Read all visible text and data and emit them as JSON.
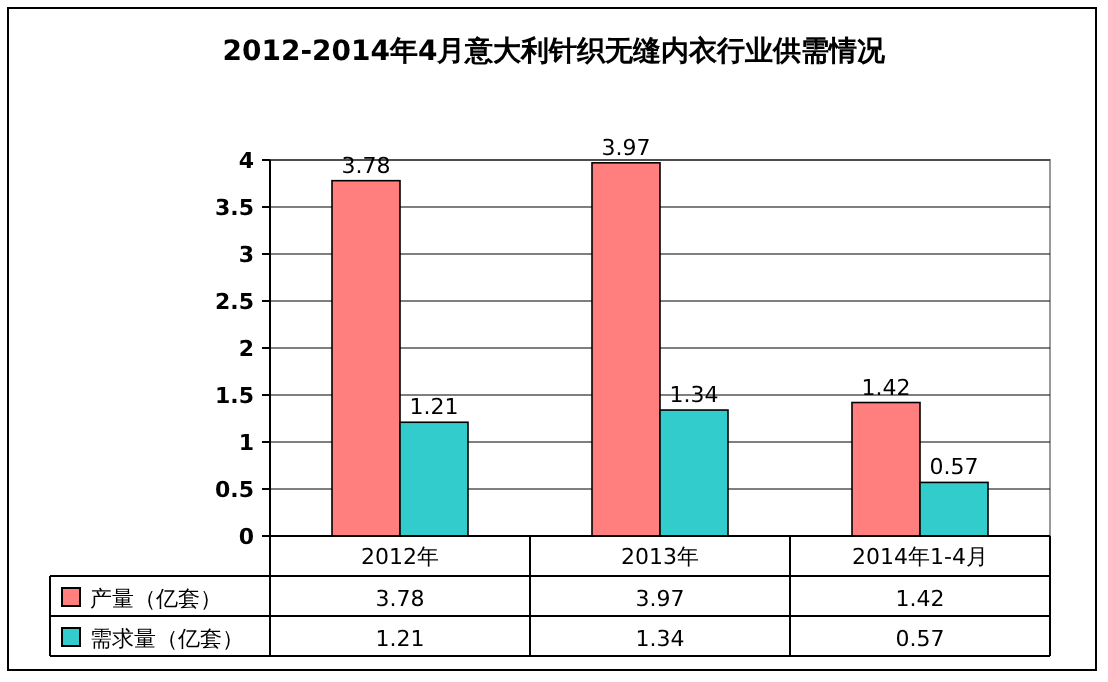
{
  "chart_data": {
    "type": "bar",
    "title": "2012-2014年4月意大利针织无缝内衣行业供需情况",
    "categories": [
      "2012年",
      "2013年",
      "2014年1-4月"
    ],
    "series": [
      {
        "name": "产量（亿套）",
        "color": "#ff7f7f",
        "values": [
          3.78,
          3.97,
          1.42
        ],
        "value_labels": [
          "3.78",
          "3.97",
          "1.42"
        ]
      },
      {
        "name": "需求量（亿套）",
        "color": "#33cccc",
        "values": [
          1.21,
          1.34,
          0.57
        ],
        "value_labels": [
          "1.21",
          "1.34",
          "0.57"
        ]
      }
    ],
    "ylim": [
      0,
      4
    ],
    "yticks": [
      0,
      0.5,
      1,
      1.5,
      2,
      2.5,
      3,
      3.5,
      4
    ],
    "annotations": [
      "3.78",
      "3.97",
      "1.42",
      "1.21",
      "1.34",
      "0.57"
    ],
    "grid": "y",
    "legend": "bottom left",
    "data_labels": true
  }
}
